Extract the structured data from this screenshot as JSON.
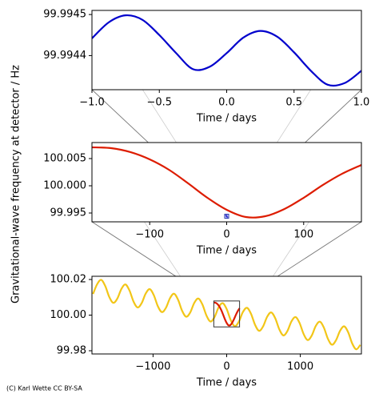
{
  "ylabel": "Gravitational-wave frequency at detector / Hz",
  "credit": "(C) Karl Wette CC BY-SA",
  "chart_data": [
    {
      "type": "line",
      "xlabel": "Time / days",
      "x": [
        -1,
        -0.875,
        -0.75,
        -0.625,
        -0.5,
        -0.375,
        -0.25,
        -0.125,
        0,
        0.125,
        0.25,
        0.375,
        0.5,
        0.625,
        0.75,
        0.875,
        1
      ],
      "series": [
        {
          "color": "#0000cc",
          "values": [
            99.994442,
            99.994481,
            99.994498,
            99.994487,
            99.99445,
            99.994406,
            99.994367,
            99.994373,
            99.994406,
            99.994444,
            99.99446,
            99.994446,
            99.994408,
            99.994363,
            99.994329,
            99.994333,
            99.994363
          ]
        }
      ],
      "xlim": [
        -1,
        1
      ],
      "xticks": [
        {
          "value": -1,
          "label": "−1.0"
        },
        {
          "value": -0.5,
          "label": "−0.5"
        },
        {
          "value": 0,
          "label": "0.0"
        },
        {
          "value": 0.5,
          "label": "0.5"
        },
        {
          "value": 1,
          "label": "1.0"
        }
      ],
      "ylim": [
        99.994317,
        99.99451
      ],
      "yticks": [
        99.9944,
        99.9945
      ]
    },
    {
      "type": "line",
      "xlabel": "Time / days",
      "x": [
        -175,
        -150,
        -125,
        -100,
        -75,
        -50,
        -25,
        0,
        25,
        50,
        75,
        100,
        125,
        150,
        175
      ],
      "series": [
        {
          "color": "#dd1c00",
          "values": [
            100.00706,
            100.00691,
            100.00618,
            100.00485,
            100.00294,
            100.00044,
            99.99779,
            99.99559,
            99.99426,
            99.99441,
            99.99574,
            99.99779,
            100.00015,
            100.00221,
            100.00382
          ]
        }
      ],
      "xlim": [
        -175,
        175
      ],
      "xticks": [
        {
          "value": -100,
          "label": "−100"
        },
        0,
        100
      ],
      "ylim": [
        99.99338,
        100.00794
      ],
      "yticks": [
        99.995,
        {
          "value": 100.0,
          "label": "100.000"
        },
        {
          "value": 100.005,
          "label": "100.005"
        }
      ]
    },
    {
      "type": "line",
      "xlabel": "Time / days",
      "x": [
        -1815,
        -1760,
        -1705,
        -1650,
        -1595,
        -1540,
        -1485,
        -1430,
        -1375,
        -1320,
        -1265,
        -1210,
        -1155,
        -1100,
        -1045,
        -990,
        -935,
        -880,
        -825,
        -770,
        -715,
        -660,
        -605,
        -550,
        -495,
        -440,
        -385,
        -330,
        -275,
        -220,
        -165,
        -110,
        -55,
        0,
        55,
        110,
        165,
        220,
        275,
        330,
        385,
        440,
        495,
        550,
        605,
        660,
        715,
        770,
        825,
        880,
        935,
        990,
        1045,
        1100,
        1155,
        1210,
        1265,
        1320,
        1375,
        1430,
        1485,
        1540,
        1595,
        1650,
        1705,
        1760,
        1815
      ],
      "series": [
        {
          "color": "#f2c618",
          "values": [
            100.0119,
            100.0173,
            100.0198,
            100.0164,
            100.0102,
            100.0069,
            100.0093,
            100.0147,
            100.0172,
            100.0138,
            100.0076,
            100.0043,
            100.0067,
            100.0121,
            100.0146,
            100.0112,
            100.005,
            100.0017,
            100.0041,
            100.0095,
            100.012,
            100.0086,
            100.0024,
            99.9991,
            100.0015,
            100.0069,
            100.0093,
            100.006,
            99.9998,
            99.9964,
            99.9989,
            100.0043,
            100.0067,
            100.0034,
            99.9972,
            99.9938,
            99.9963,
            100.0017,
            100.0041,
            100.0008,
            99.9946,
            99.9912,
            99.9937,
            99.9991,
            100.0015,
            99.9982,
            99.992,
            99.9886,
            99.9911,
            99.9965,
            99.9989,
            99.9956,
            99.9894,
            99.986,
            99.9885,
            99.9939,
            99.9963,
            99.993,
            99.9867,
            99.9834,
            99.9859,
            99.9912,
            99.9937,
            99.9904,
            99.9841,
            99.9808,
            99.9833
          ]
        }
      ],
      "xlim": [
        -1830,
        1830
      ],
      "xticks": [
        {
          "value": -1000,
          "label": "−1000"
        },
        0,
        1000
      ],
      "ylim": [
        99.9782,
        100.0218
      ],
      "yticks": [
        99.98,
        {
          "value": 100.0,
          "label": "100.00"
        },
        {
          "value": 100.02,
          "label": "100.02"
        }
      ]
    }
  ]
}
